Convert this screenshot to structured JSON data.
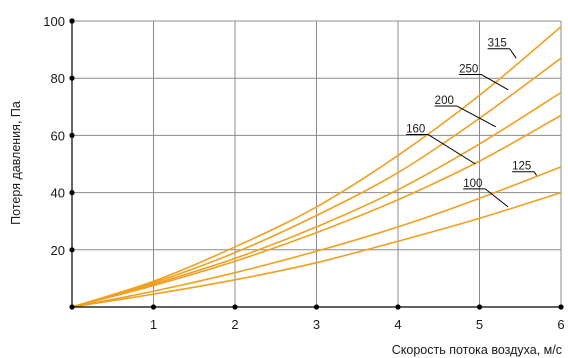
{
  "chart_data": {
    "type": "line",
    "title": "",
    "xlabel": "Скорость потока воздуха, м/с",
    "ylabel": "Потеря давления, Па",
    "xlim": [
      0,
      6
    ],
    "ylim": [
      0,
      100
    ],
    "x_ticks": [
      1,
      2,
      3,
      4,
      5,
      6
    ],
    "y_ticks": [
      20,
      40,
      60,
      80,
      100
    ],
    "x_tick_labels": [
      "1",
      "2",
      "3",
      "4",
      "5",
      "6"
    ],
    "y_tick_labels": [
      "20",
      "40",
      "60",
      "80",
      "100"
    ],
    "grid": true,
    "line_color": "#f0a020",
    "grid_color": "#8c8c8c",
    "axis_color": "#000000",
    "series": [
      {
        "name": "315",
        "x": [
          0,
          1,
          2,
          3,
          4,
          5,
          6
        ],
        "values": [
          0,
          9,
          21,
          35,
          53,
          74,
          98
        ]
      },
      {
        "name": "250",
        "x": [
          0,
          1,
          2,
          3,
          4,
          5,
          6
        ],
        "values": [
          0,
          8.5,
          19,
          32,
          47,
          66,
          87
        ]
      },
      {
        "name": "200",
        "x": [
          0,
          1,
          2,
          3,
          4,
          5,
          6
        ],
        "values": [
          0,
          8,
          17,
          28,
          41,
          57,
          75
        ]
      },
      {
        "name": "160",
        "x": [
          0,
          1,
          2,
          3,
          4,
          5,
          6
        ],
        "values": [
          0,
          7.5,
          16,
          26,
          37.5,
          51,
          67
        ]
      },
      {
        "name": "125",
        "x": [
          0,
          1,
          2,
          3,
          4,
          5,
          6
        ],
        "values": [
          0,
          5.5,
          12,
          19.5,
          28,
          38,
          49
        ]
      },
      {
        "name": "100",
        "x": [
          0,
          1,
          2,
          3,
          4,
          5,
          6
        ],
        "values": [
          0,
          4.5,
          9.5,
          15.5,
          23,
          31,
          40
        ]
      }
    ],
    "label_callouts": [
      {
        "name": "315",
        "label_at": [
          5.1,
          91
        ],
        "line_to": [
          5.45,
          87
        ]
      },
      {
        "name": "250",
        "label_at": [
          4.75,
          82
        ],
        "line_to": [
          5.35,
          76
        ]
      },
      {
        "name": "200",
        "label_at": [
          4.45,
          71
        ],
        "line_to": [
          5.2,
          63
        ]
      },
      {
        "name": "160",
        "label_at": [
          4.1,
          61
        ],
        "line_to": [
          4.95,
          50
        ]
      },
      {
        "name": "125",
        "label_at": [
          5.4,
          48
        ],
        "line_to": [
          5.7,
          46
        ]
      },
      {
        "name": "100",
        "label_at": [
          4.8,
          42
        ],
        "line_to": [
          5.35,
          35
        ]
      }
    ]
  }
}
